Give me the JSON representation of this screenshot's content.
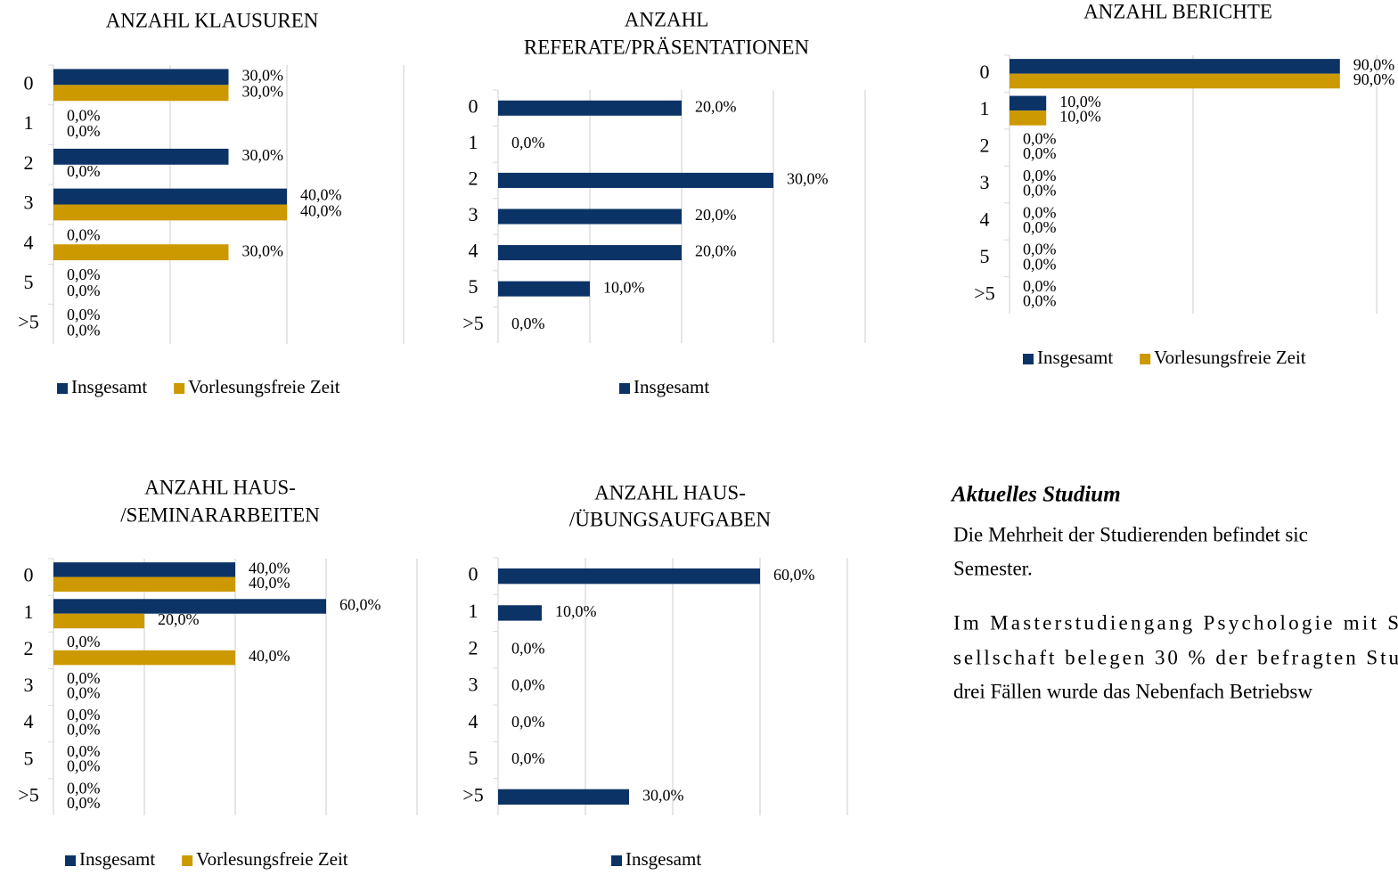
{
  "chart_data": [
    {
      "type": "bar",
      "orientation": "horizontal",
      "title": [
        "ANZAHL KLAUSUREN"
      ],
      "categories": [
        "0",
        "1",
        "2",
        "3",
        "4",
        "5",
        ">5"
      ],
      "series": [
        {
          "name": "Insgesamt",
          "color": "#0b3366",
          "values": [
            30,
            0,
            30,
            40,
            0,
            0,
            0
          ],
          "value_labels": [
            "30,0%",
            "0,0%",
            "30,0%",
            "40,0%",
            "0,0%",
            "0,0%",
            "0,0%"
          ]
        },
        {
          "name": "Vorlesungsfreie Zeit",
          "color": "#cc9900",
          "values": [
            30,
            0,
            0,
            40,
            30,
            0,
            0
          ],
          "value_labels": [
            "30,0%",
            "0,0%",
            "0,0%",
            "40,0%",
            "30,0%",
            "0,0%",
            "0,0%"
          ]
        }
      ],
      "xlim": [
        0,
        60
      ],
      "xticks": [
        0,
        20,
        40,
        60
      ],
      "grid": true,
      "legend": "bottom"
    },
    {
      "type": "bar",
      "orientation": "horizontal",
      "title": [
        "ANZAHL",
        "REFERATE/PRÄSENTATIONEN"
      ],
      "categories": [
        "0",
        "1",
        "2",
        "3",
        "4",
        "5",
        ">5"
      ],
      "series": [
        {
          "name": "Insgesamt",
          "color": "#0b3366",
          "values": [
            20,
            0,
            30,
            20,
            20,
            10,
            0
          ],
          "value_labels": [
            "20,0%",
            "0,0%",
            "30,0%",
            "20,0%",
            "20,0%",
            "10,0%",
            "0,0%"
          ]
        }
      ],
      "xlim": [
        0,
        40
      ],
      "xticks": [
        0,
        10,
        20,
        30,
        40
      ],
      "grid": true,
      "legend": "bottom"
    },
    {
      "type": "bar",
      "orientation": "horizontal",
      "title": [
        "ANZAHL BERICHTE"
      ],
      "categories": [
        "0",
        "1",
        "2",
        "3",
        "4",
        "5",
        ">5"
      ],
      "series": [
        {
          "name": "Insgesamt",
          "color": "#0b3366",
          "values": [
            90,
            10,
            0,
            0,
            0,
            0,
            0
          ],
          "value_labels": [
            "90,0%",
            "10,0%",
            "0,0%",
            "0,0%",
            "0,0%",
            "0,0%",
            "0,0%"
          ]
        },
        {
          "name": "Vorlesungsfreie Zeit",
          "color": "#cc9900",
          "values": [
            90,
            10,
            0,
            0,
            0,
            0,
            0
          ],
          "value_labels": [
            "90,0%",
            "10,0%",
            "0,0%",
            "0,0%",
            "0,0%",
            "0,0%",
            "0,0%"
          ]
        }
      ],
      "xlim": [
        0,
        100
      ],
      "xticks": [
        0,
        50,
        100
      ],
      "grid": true,
      "legend": "bottom"
    },
    {
      "type": "bar",
      "orientation": "horizontal",
      "title": [
        "ANZAHL HAUS-",
        "/SEMINARARBEITEN"
      ],
      "categories": [
        "0",
        "1",
        "2",
        "3",
        "4",
        "5",
        ">5"
      ],
      "series": [
        {
          "name": "Insgesamt",
          "color": "#0b3366",
          "values": [
            40,
            60,
            0,
            0,
            0,
            0,
            0
          ],
          "value_labels": [
            "40,0%",
            "60,0%",
            "0,0%",
            "0,0%",
            "0,0%",
            "0,0%",
            "0,0%"
          ]
        },
        {
          "name": "Vorlesungsfreie Zeit",
          "color": "#cc9900",
          "values": [
            40,
            20,
            40,
            0,
            0,
            0,
            0
          ],
          "value_labels": [
            "40,0%",
            "20,0%",
            "40,0%",
            "0,0%",
            "0,0%",
            "0,0%",
            "0,0%"
          ]
        }
      ],
      "xlim": [
        0,
        80
      ],
      "xticks": [
        0,
        20,
        40,
        60,
        80
      ],
      "grid": true,
      "legend": "bottom"
    },
    {
      "type": "bar",
      "orientation": "horizontal",
      "title": [
        "ANZAHL HAUS-",
        "/ÜBUNGSAUFGABEN"
      ],
      "categories": [
        "0",
        "1",
        "2",
        "3",
        "4",
        "5",
        ">5"
      ],
      "series": [
        {
          "name": "Insgesamt",
          "color": "#0b3366",
          "values": [
            60,
            10,
            0,
            0,
            0,
            0,
            30
          ],
          "value_labels": [
            "60,0%",
            "10,0%",
            "0,0%",
            "0,0%",
            "0,0%",
            "0,0%",
            "30,0%"
          ]
        }
      ],
      "xlim": [
        0,
        80
      ],
      "xticks": [
        0,
        20,
        40,
        60,
        80
      ],
      "grid": true,
      "legend": "bottom"
    }
  ],
  "text": {
    "heading": "Aktuelles Studium",
    "paragraphs": [
      [
        "Die Mehrheit der Studierenden befindet sic",
        "Semester."
      ],
      [
        "Im Masterstudiengang Psychologie mit S",
        "sellschaft belegen 30 % der befragten Stu",
        "drei Fällen wurde das Nebenfach Betriebsw"
      ]
    ]
  }
}
